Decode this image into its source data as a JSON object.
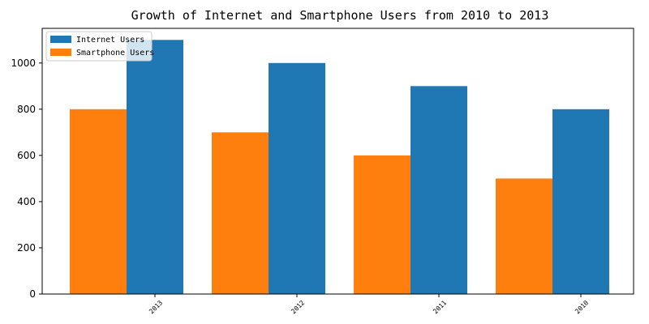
{
  "chart_data": {
    "type": "bar",
    "title": "Growth of Internet and Smartphone Users from 2010 to 2013",
    "categories": [
      "2013",
      "2012",
      "2011",
      "2010"
    ],
    "series": [
      {
        "name": "Smartphone Users",
        "values": [
          800,
          700,
          600,
          500
        ],
        "color": "#ff7f0e"
      },
      {
        "name": "Internet Users",
        "values": [
          1100,
          1000,
          900,
          800
        ],
        "color": "#1f77b4"
      }
    ],
    "legend_order": [
      "Internet Users",
      "Smartphone Users"
    ],
    "yticks": [
      0,
      200,
      400,
      600,
      800,
      1000
    ],
    "ylim": [
      0,
      1150
    ],
    "grid": false,
    "legend_position": "top-left",
    "xlabel": "",
    "ylabel": ""
  }
}
